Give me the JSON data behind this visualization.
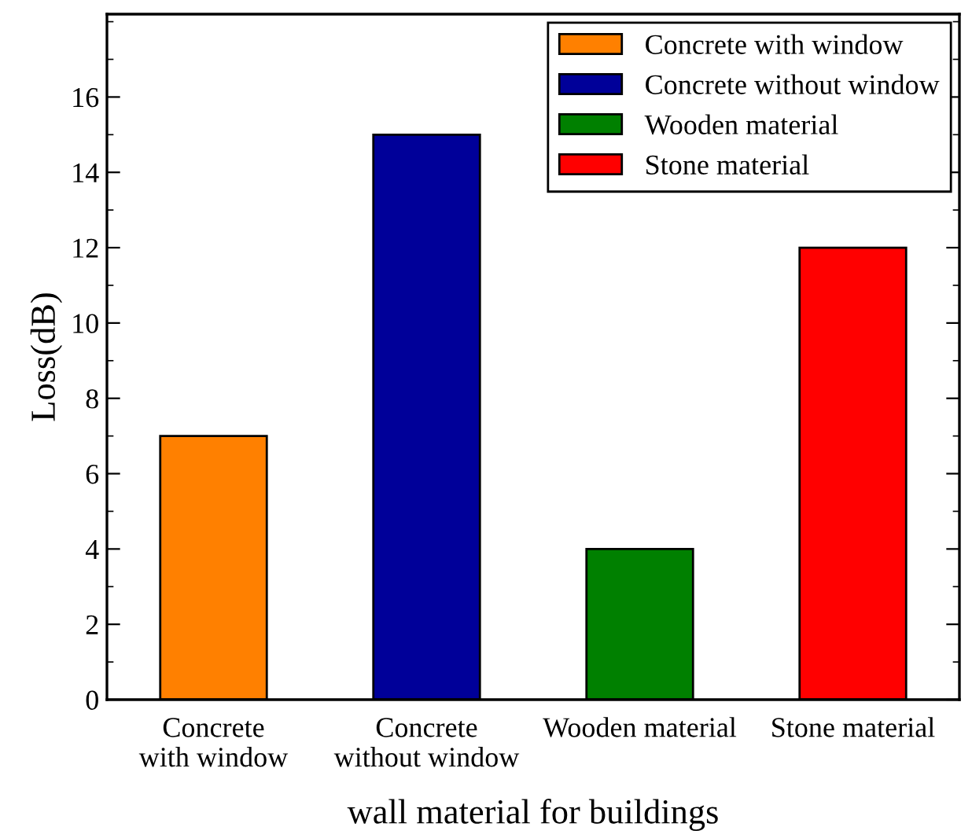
{
  "chart_data": {
    "type": "bar",
    "xlabel": "wall material for buildings",
    "ylabel": "Loss(dB)",
    "categories": [
      "Concrete\nwith window",
      "Concrete\nwithout window",
      "Wooden material",
      "Stone material"
    ],
    "series": [
      {
        "name": "Concrete with window",
        "color": "#ff8000",
        "values": [
          7,
          null,
          null,
          null
        ]
      },
      {
        "name": "Concrete without window",
        "color": "#000099",
        "values": [
          null,
          15,
          null,
          null
        ]
      },
      {
        "name": "Wooden material",
        "color": "#008000",
        "values": [
          null,
          null,
          4,
          null
        ]
      },
      {
        "name": "Stone material",
        "color": "#ff0000",
        "values": [
          null,
          null,
          null,
          12
        ]
      }
    ],
    "ylim": [
      0,
      18.2
    ],
    "yticks": [
      0,
      2,
      4,
      6,
      8,
      10,
      12,
      14,
      16
    ],
    "grid": false,
    "legend": "top right"
  }
}
